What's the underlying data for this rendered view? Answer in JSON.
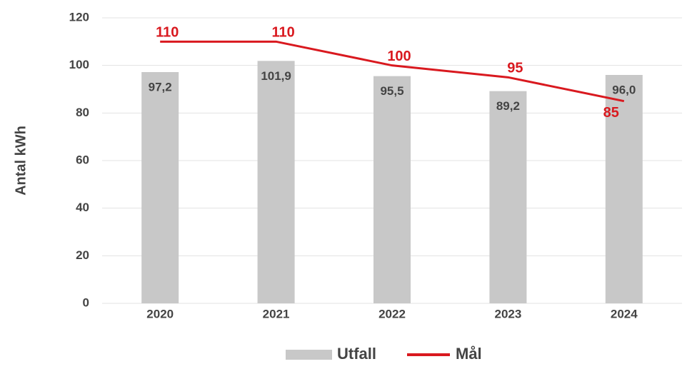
{
  "chart_data": {
    "type": "bar",
    "ylabel": "Antal kWh",
    "categories": [
      "2020",
      "2021",
      "2022",
      "2023",
      "2024"
    ],
    "series": [
      {
        "name": "Utfall",
        "type": "bar",
        "color": "#c8c8c8",
        "values": [
          97.2,
          101.9,
          95.5,
          89.2,
          96.0
        ],
        "value_labels": [
          "97,2",
          "101,9",
          "95,5",
          "89,2",
          "96,0"
        ]
      },
      {
        "name": "Mål",
        "type": "line",
        "color": "#d9191f",
        "values": [
          110,
          110,
          100,
          95,
          85
        ]
      }
    ],
    "ylim": [
      0,
      120
    ],
    "yticks": [
      0,
      20,
      40,
      60,
      80,
      100,
      120
    ],
    "grid": true,
    "legend": "bottom"
  }
}
